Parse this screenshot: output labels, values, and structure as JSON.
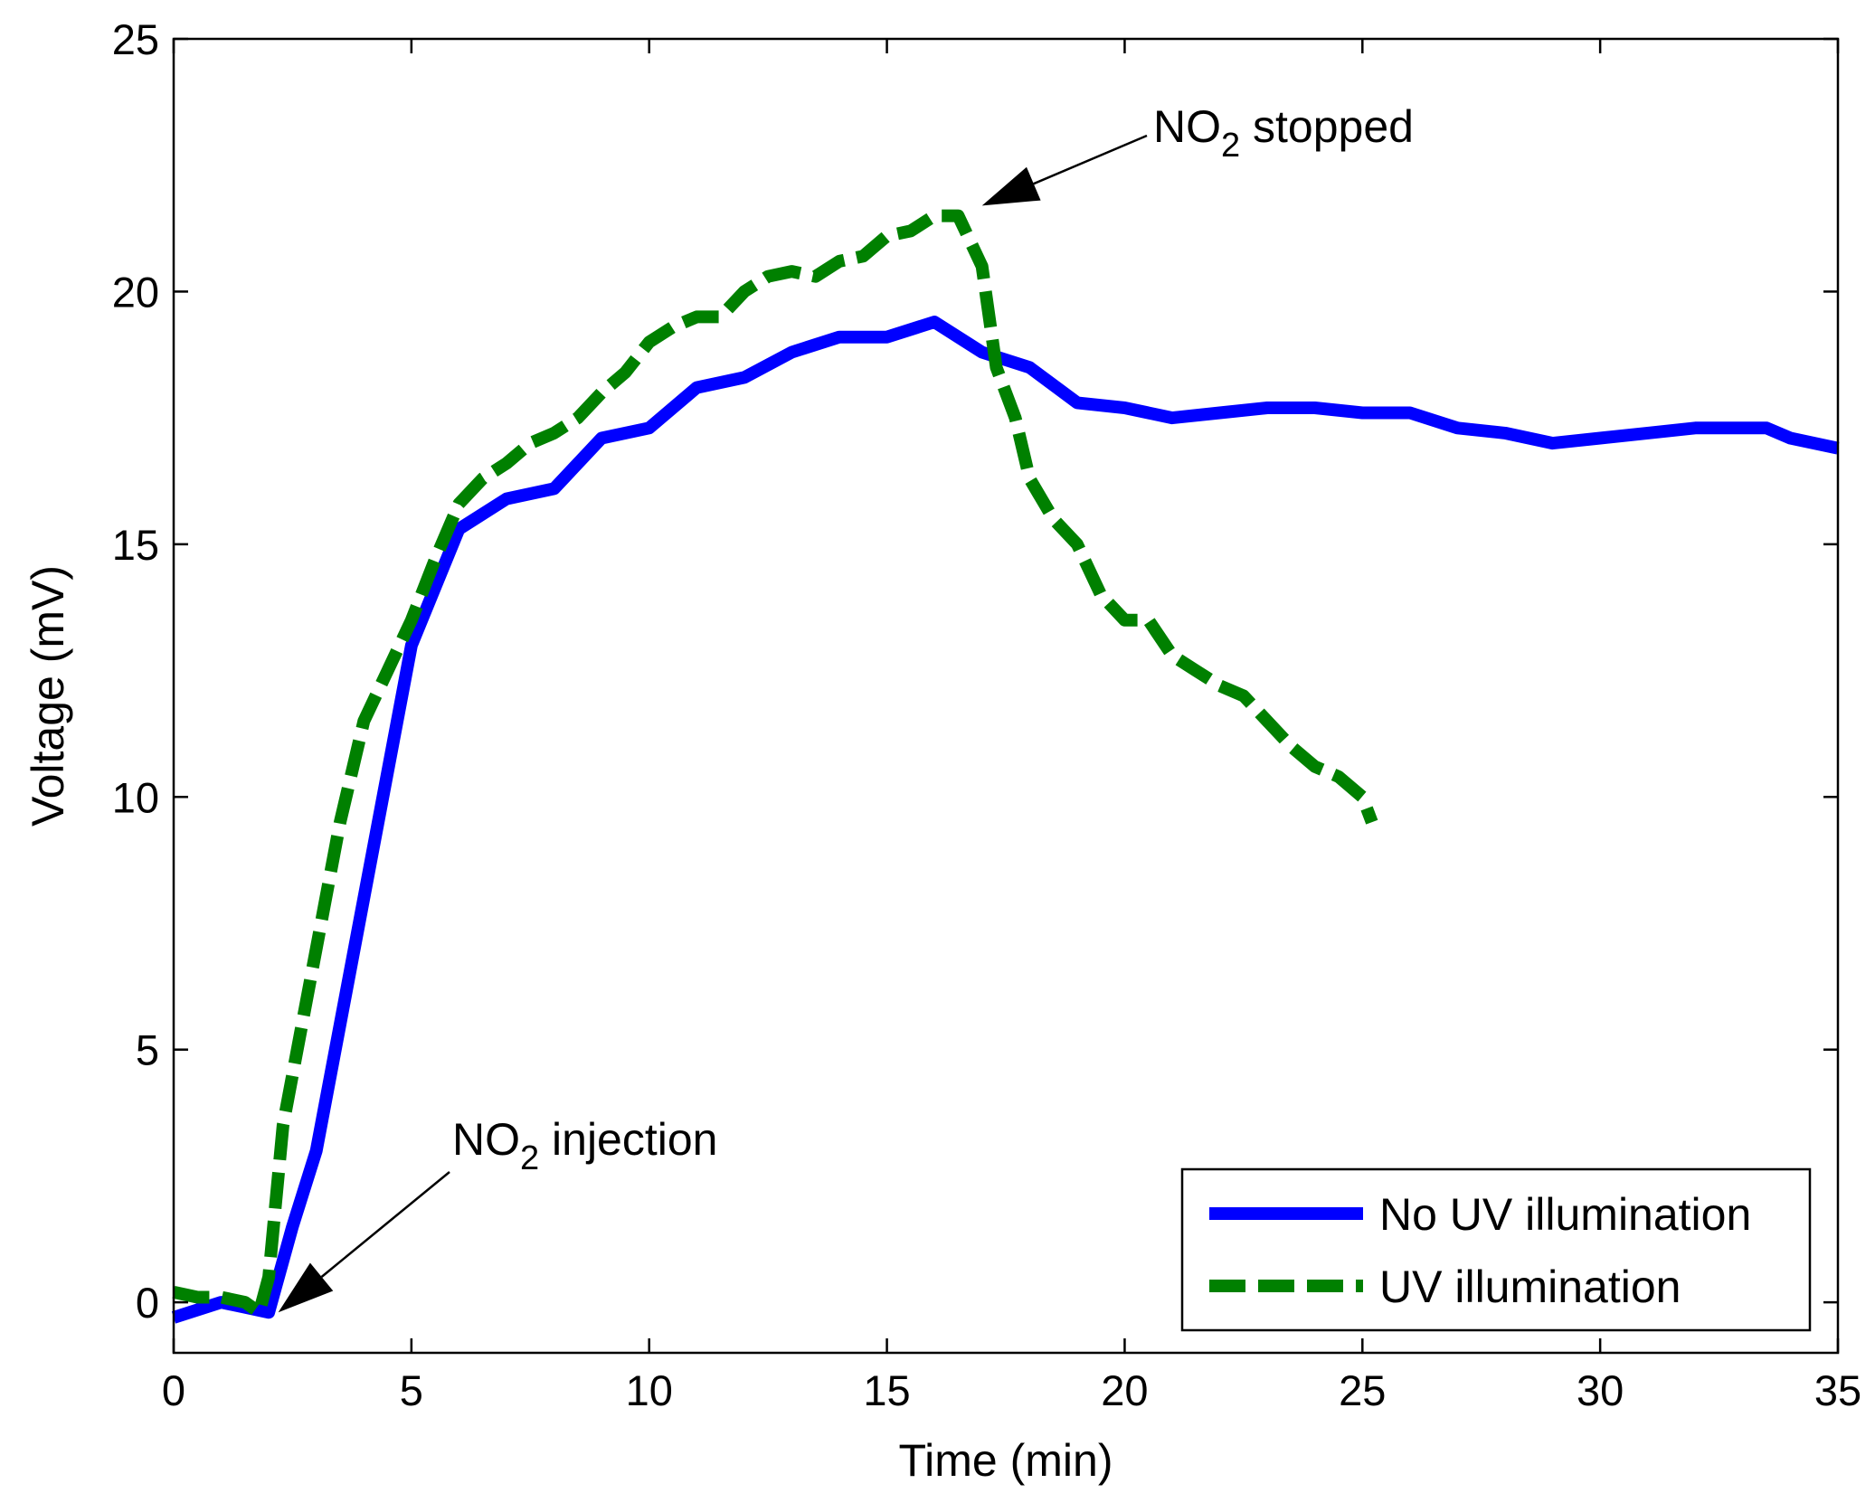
{
  "chart_data": {
    "type": "line",
    "xlabel": "Time (min)",
    "ylabel": "Voltage (mV)",
    "xlim": [
      0,
      35
    ],
    "ylim": [
      -1,
      25
    ],
    "xticks": [
      0,
      5,
      10,
      15,
      20,
      25,
      30,
      35
    ],
    "yticks": [
      0,
      5,
      10,
      15,
      20,
      25
    ],
    "grid": false,
    "legend_position": "bottom-right",
    "series": [
      {
        "name": "No UV illumination",
        "color": "#0000ff",
        "style": "solid",
        "x": [
          0,
          1,
          1.5,
          2,
          2.5,
          3,
          4,
          5,
          6,
          7,
          8,
          9,
          10,
          11,
          12,
          13,
          14,
          15,
          16,
          17,
          18,
          19,
          20,
          21,
          22,
          23,
          24,
          25,
          26,
          27,
          28,
          29,
          30,
          31,
          32,
          33,
          33.5,
          34,
          35
        ],
        "y": [
          -0.3,
          0,
          -0.1,
          -0.2,
          1.5,
          3,
          8,
          13,
          15.3,
          15.9,
          16.1,
          17.1,
          17.3,
          18.1,
          18.3,
          18.8,
          19.1,
          19.1,
          19.4,
          18.8,
          18.5,
          17.8,
          17.7,
          17.5,
          17.6,
          17.7,
          17.7,
          17.6,
          17.6,
          17.3,
          17.2,
          17,
          17.1,
          17.2,
          17.3,
          17.3,
          17.3,
          17.1,
          16.9
        ]
      },
      {
        "name": "UV illumination",
        "color": "#008000",
        "style": "dashed",
        "x": [
          0,
          0.5,
          1,
          1.5,
          1.8,
          2,
          2.3,
          2.7,
          3,
          3.5,
          4,
          4.5,
          5,
          5.5,
          6,
          6.5,
          7,
          7.5,
          8,
          8.5,
          9,
          9.5,
          10,
          10.5,
          11,
          11.5,
          12,
          12.5,
          13,
          13.5,
          14,
          14.5,
          15,
          15.5,
          16,
          16.5,
          17,
          17.3,
          17.7,
          18,
          18.5,
          19,
          19.5,
          20,
          20.5,
          21,
          21.5,
          22,
          22.5,
          23,
          23.5,
          24,
          24.5,
          25,
          25.2
        ],
        "y": [
          0.2,
          0.1,
          0.1,
          0,
          -0.2,
          0.5,
          3.5,
          5.5,
          7,
          9.5,
          11.5,
          12.5,
          13.5,
          14.7,
          15.8,
          16.3,
          16.6,
          17,
          17.2,
          17.5,
          18,
          18.4,
          19,
          19.3,
          19.5,
          19.5,
          20,
          20.3,
          20.4,
          20.3,
          20.6,
          20.7,
          21.1,
          21.2,
          21.5,
          21.5,
          20.5,
          18.5,
          17.5,
          16.3,
          15.5,
          15,
          14,
          13.5,
          13.5,
          12.8,
          12.5,
          12.2,
          12,
          11.5,
          11,
          10.6,
          10.4,
          10,
          9.5
        ]
      }
    ],
    "annotations": [
      {
        "text": "NO",
        "subscript": "2",
        "suffix": " injection",
        "arrow_to_x": 2.2,
        "arrow_to_y": -0.2
      },
      {
        "text": "NO",
        "subscript": "2",
        "suffix": " stopped",
        "arrow_to_x": 17.0,
        "arrow_to_y": 21.7
      }
    ]
  }
}
